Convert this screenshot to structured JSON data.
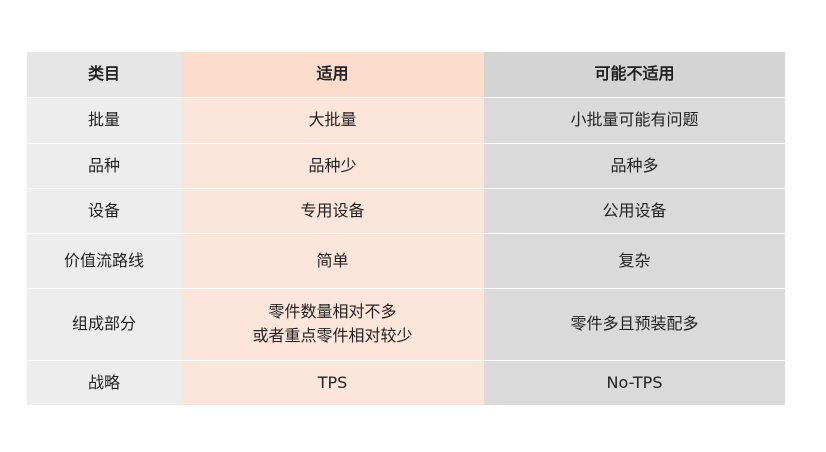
{
  "table": {
    "header": [
      "类目",
      "适用",
      "可能不适用"
    ],
    "rows": [
      [
        "批量",
        "大批量",
        "小批量可能有问题"
      ],
      [
        "品种",
        "品种少",
        "品种多"
      ],
      [
        "设备",
        "专用设备",
        "公用设备"
      ],
      [
        "价值流路线",
        "简单",
        "复杂"
      ],
      [
        "组成部分",
        [
          "零件数量相对不多",
          "或者重点零件相对较少"
        ],
        "零件多且预装配多"
      ],
      [
        "战略",
        "TPS",
        "No-TPS"
      ]
    ]
  }
}
